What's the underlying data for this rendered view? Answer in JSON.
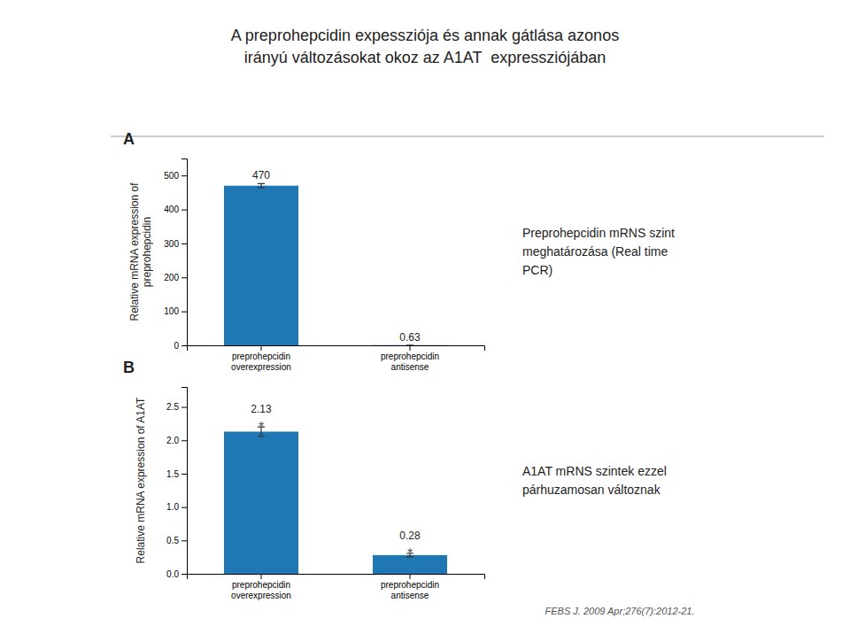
{
  "title": "A preprohepcidin expessziója és annak gátlása azonos\nirányú változásokat okoz az A1AT  expressziójában",
  "footer": "FEBS J. 2009 Apr;276(7):2012-21.",
  "chart_data": [
    {
      "type": "bar",
      "title": "A",
      "y_label": "Relative mRNA expression of\npreprohepcidin",
      "categories": [
        "preprohepcidin\noverexpression",
        "preprohepcidin\nantisense"
      ],
      "values": [
        470,
        0.63
      ],
      "errors": [
        6,
        0.04
      ],
      "ylim": [
        0,
        550
      ],
      "yticks": [
        0,
        100,
        200,
        300,
        400,
        500
      ],
      "data_labels": true,
      "grid": false,
      "annotations": [
        "Preprohepcidin mRNS szint\nmeghatározása (Real time\nPCR)"
      ]
    },
    {
      "type": "bar",
      "title": "B",
      "y_label": "Relative mRNA expression of A1AT",
      "categories": [
        "preprohepcidin\noverexpression",
        "preprohepcidin\nantisense"
      ],
      "values": [
        2.13,
        0.28
      ],
      "errors": [
        0.07,
        0.025
      ],
      "ylim": [
        0,
        2.8
      ],
      "yticks": [
        {
          "value": 0,
          "label": "0.0"
        },
        0.5,
        {
          "value": 1.0,
          "label": "1.0"
        },
        1.5,
        {
          "value": 2.0,
          "label": "2.0"
        },
        2.5
      ],
      "data_labels": true,
      "grid": false,
      "significance": [
        "*",
        "*"
      ],
      "annotations": [
        "A1AT mRNS szintek ezzel\npárhuzamosan változnak"
      ]
    }
  ]
}
